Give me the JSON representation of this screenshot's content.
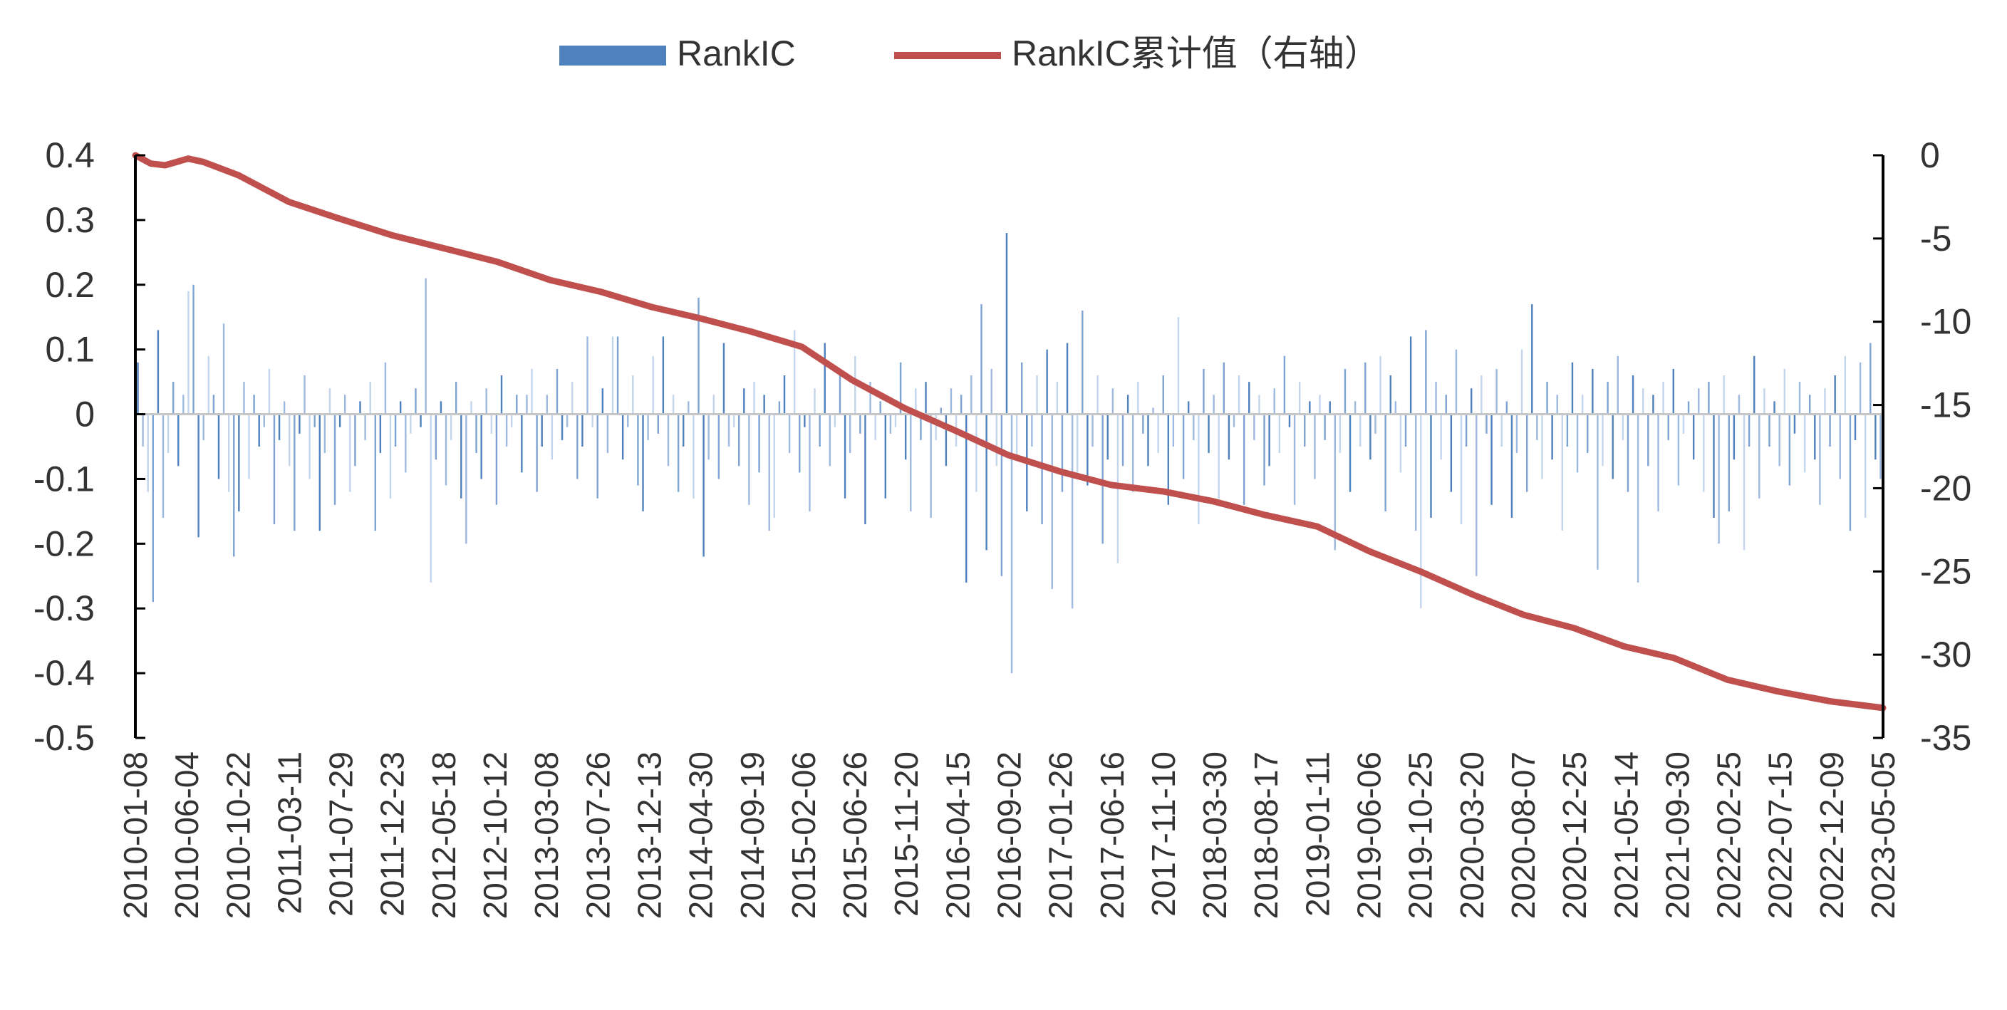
{
  "chart_data": {
    "type": "bar+line",
    "title": "",
    "legend": {
      "placement": "top-center",
      "entries": [
        {
          "name": "RankIC",
          "kind": "bar",
          "color": "#4f81bd"
        },
        {
          "name": "RankIC累计值（右轴）",
          "kind": "line",
          "color": "#c0504d"
        }
      ]
    },
    "left_axis": {
      "ylim": [
        -0.5,
        0.4
      ],
      "ticks": [
        0.4,
        0.3,
        0.2,
        0.1,
        0,
        -0.1,
        -0.2,
        -0.3,
        -0.4,
        -0.5
      ],
      "tick_labels": [
        "0.4",
        "0.3",
        "0.2",
        "0.1",
        "0",
        "-0.1",
        "-0.2",
        "-0.3",
        "-0.4",
        "-0.5"
      ]
    },
    "right_axis": {
      "ylim": [
        -35,
        0
      ],
      "ticks": [
        0,
        -5,
        -10,
        -15,
        -20,
        -25,
        -30,
        -35
      ],
      "tick_labels": [
        "0",
        "-5",
        "-10",
        "-15",
        "-20",
        "-25",
        "-30",
        "-35"
      ]
    },
    "x_axis": {
      "start": "2010-01-08",
      "end": "2023-05-05",
      "tick_labels": [
        "2010-01-08",
        "2010-06-04",
        "2010-10-22",
        "2011-03-11",
        "2011-07-29",
        "2011-12-23",
        "2012-05-18",
        "2012-10-12",
        "2013-03-08",
        "2013-07-26",
        "2013-12-13",
        "2014-04-30",
        "2014-09-19",
        "2015-02-06",
        "2015-06-26",
        "2015-11-20",
        "2016-04-15",
        "2016-09-02",
        "2017-01-26",
        "2017-06-16",
        "2017-11-10",
        "2018-03-30",
        "2018-08-17",
        "2019-01-11",
        "2019-06-06",
        "2019-10-25",
        "2020-03-20",
        "2020-08-07",
        "2020-12-25",
        "2021-05-14",
        "2021-09-30",
        "2022-02-25",
        "2022-07-15",
        "2022-12-09",
        "2023-05-05"
      ]
    },
    "cumulative_series": {
      "name": "RankIC累计值（右轴）",
      "x": [
        "2010-01-08",
        "2010-02-20",
        "2010-04-01",
        "2010-06-04",
        "2010-07-16",
        "2010-10-22",
        "2011-03-11",
        "2011-07-29",
        "2011-12-23",
        "2012-05-18",
        "2012-10-12",
        "2013-03-08",
        "2013-07-26",
        "2013-12-13",
        "2014-04-30",
        "2014-09-19",
        "2015-02-06",
        "2015-06-26",
        "2015-11-20",
        "2016-04-15",
        "2016-09-02",
        "2017-01-26",
        "2017-06-16",
        "2017-11-10",
        "2018-03-30",
        "2018-08-17",
        "2019-01-11",
        "2019-06-06",
        "2019-10-25",
        "2020-03-20",
        "2020-08-07",
        "2020-12-25",
        "2021-05-14",
        "2021-09-30",
        "2022-02-25",
        "2022-07-15",
        "2022-12-09",
        "2023-05-05"
      ],
      "values": [
        0,
        -0.5,
        -0.6,
        -0.2,
        -0.4,
        -1.2,
        -2.8,
        -3.8,
        -4.8,
        -5.6,
        -6.4,
        -7.5,
        -8.2,
        -9.1,
        -9.8,
        -10.6,
        -11.5,
        -13.5,
        -15.2,
        -16.6,
        -18.0,
        -19.0,
        -19.8,
        -20.2,
        -20.8,
        -21.6,
        -22.3,
        -23.8,
        -25.0,
        -26.4,
        -27.6,
        -28.4,
        -29.5,
        -30.2,
        -31.5,
        -32.2,
        -32.8,
        -33.2
      ]
    },
    "rankic_series": {
      "name": "RankIC",
      "x_start": "2010-01-08",
      "x_end": "2023-05-05",
      "frequency": "weekly",
      "values": [
        0.08,
        -0.05,
        -0.12,
        -0.29,
        0.13,
        -0.16,
        -0.06,
        0.05,
        -0.08,
        0.03,
        0.19,
        0.2,
        -0.19,
        -0.04,
        0.09,
        0.03,
        -0.1,
        0.14,
        -0.12,
        -0.22,
        -0.15,
        0.05,
        -0.1,
        0.03,
        -0.05,
        -0.02,
        0.07,
        -0.17,
        -0.04,
        0.02,
        -0.08,
        -0.18,
        -0.03,
        0.06,
        -0.1,
        -0.02,
        -0.18,
        -0.06,
        0.04,
        -0.14,
        -0.02,
        0.03,
        -0.12,
        -0.08,
        0.02,
        -0.04,
        0.05,
        -0.18,
        -0.06,
        0.08,
        -0.13,
        -0.05,
        0.02,
        -0.09,
        -0.03,
        0.04,
        -0.02,
        0.21,
        -0.26,
        -0.07,
        0.02,
        -0.11,
        -0.04,
        0.05,
        -0.13,
        -0.2,
        0.02,
        -0.06,
        -0.1,
        0.04,
        -0.03,
        -0.14,
        0.06,
        -0.05,
        -0.02,
        0.03,
        -0.09,
        0.03,
        0.07,
        -0.12,
        -0.05,
        0.03,
        -0.07,
        0.07,
        -0.04,
        -0.02,
        0.05,
        -0.1,
        -0.05,
        0.12,
        -0.02,
        -0.13,
        0.04,
        -0.06,
        0.12,
        0.12,
        -0.07,
        -0.02,
        0.06,
        -0.11,
        -0.15,
        -0.04,
        0.09,
        -0.03,
        0.12,
        -0.08,
        0.03,
        -0.12,
        -0.05,
        0.02,
        -0.13,
        0.18,
        -0.22,
        -0.07,
        0.03,
        -0.1,
        0.11,
        -0.05,
        -0.02,
        -0.08,
        0.04,
        -0.14,
        0.05,
        -0.09,
        0.03,
        -0.18,
        -0.16,
        0.02,
        0.06,
        -0.06,
        0.13,
        -0.09,
        -0.02,
        -0.15,
        0.04,
        -0.05,
        0.11,
        -0.08,
        -0.02,
        0.06,
        -0.13,
        -0.06,
        0.09,
        -0.03,
        -0.17,
        0.05,
        -0.04,
        0.02,
        -0.13,
        -0.03,
        -0.02,
        0.08,
        -0.07,
        -0.15,
        0.04,
        -0.04,
        0.05,
        -0.16,
        -0.04,
        0.01,
        -0.08,
        0.04,
        -0.05,
        0.03,
        -0.26,
        0.06,
        -0.12,
        0.17,
        -0.21,
        0.07,
        -0.08,
        -0.25,
        0.28,
        -0.4,
        -0.07,
        0.08,
        -0.15,
        -0.05,
        0.06,
        -0.17,
        0.1,
        -0.27,
        0.05,
        -0.12,
        0.11,
        -0.3,
        -0.09,
        0.16,
        -0.11,
        -0.05,
        0.06,
        -0.2,
        -0.07,
        0.04,
        -0.23,
        -0.08,
        0.03,
        -0.12,
        0.05,
        -0.03,
        -0.08,
        0.01,
        -0.06,
        0.06,
        -0.14,
        -0.05,
        0.15,
        -0.1,
        0.02,
        -0.04,
        -0.17,
        0.07,
        -0.06,
        0.03,
        -0.13,
        0.08,
        -0.07,
        -0.02,
        0.06,
        -0.14,
        0.05,
        -0.04,
        0.03,
        -0.11,
        -0.08,
        0.04,
        -0.06,
        0.09,
        -0.02,
        -0.14,
        0.05,
        -0.05,
        0.02,
        -0.1,
        0.03,
        -0.04,
        0.02,
        -0.21,
        -0.06,
        0.07,
        -0.12,
        0.02,
        -0.05,
        0.08,
        -0.07,
        -0.03,
        0.09,
        -0.15,
        0.06,
        0.02,
        -0.09,
        -0.05,
        0.12,
        -0.18,
        -0.3,
        0.13,
        -0.16,
        0.05,
        -0.07,
        0.03,
        -0.12,
        0.1,
        -0.17,
        -0.05,
        0.04,
        -0.25,
        0.06,
        -0.03,
        -0.14,
        0.07,
        -0.05,
        0.02,
        -0.16,
        -0.06,
        0.1,
        -0.12,
        0.17,
        -0.04,
        -0.1,
        0.05,
        -0.07,
        0.03,
        -0.18,
        -0.05,
        0.08,
        -0.09,
        0.03,
        -0.06,
        0.07,
        -0.24,
        -0.08,
        0.05,
        -0.1,
        0.09,
        -0.04,
        -0.12,
        0.06,
        -0.26,
        0.04,
        -0.08,
        0.03,
        -0.15,
        0.05,
        -0.04,
        0.07,
        -0.11,
        -0.03,
        0.02,
        -0.07,
        0.04,
        -0.12,
        0.05,
        -0.16,
        -0.2,
        0.06,
        -0.15,
        -0.07,
        0.03,
        -0.21,
        -0.05,
        0.09,
        -0.13,
        0.04,
        -0.05,
        0.02,
        -0.08,
        0.07,
        -0.11,
        -0.03,
        0.05,
        -0.09,
        0.03,
        -0.07,
        -0.14,
        0.04,
        -0.05,
        0.06,
        -0.1,
        0.09,
        -0.18,
        -0.04,
        0.08,
        -0.16,
        0.11,
        -0.07,
        -0.1
      ]
    }
  }
}
